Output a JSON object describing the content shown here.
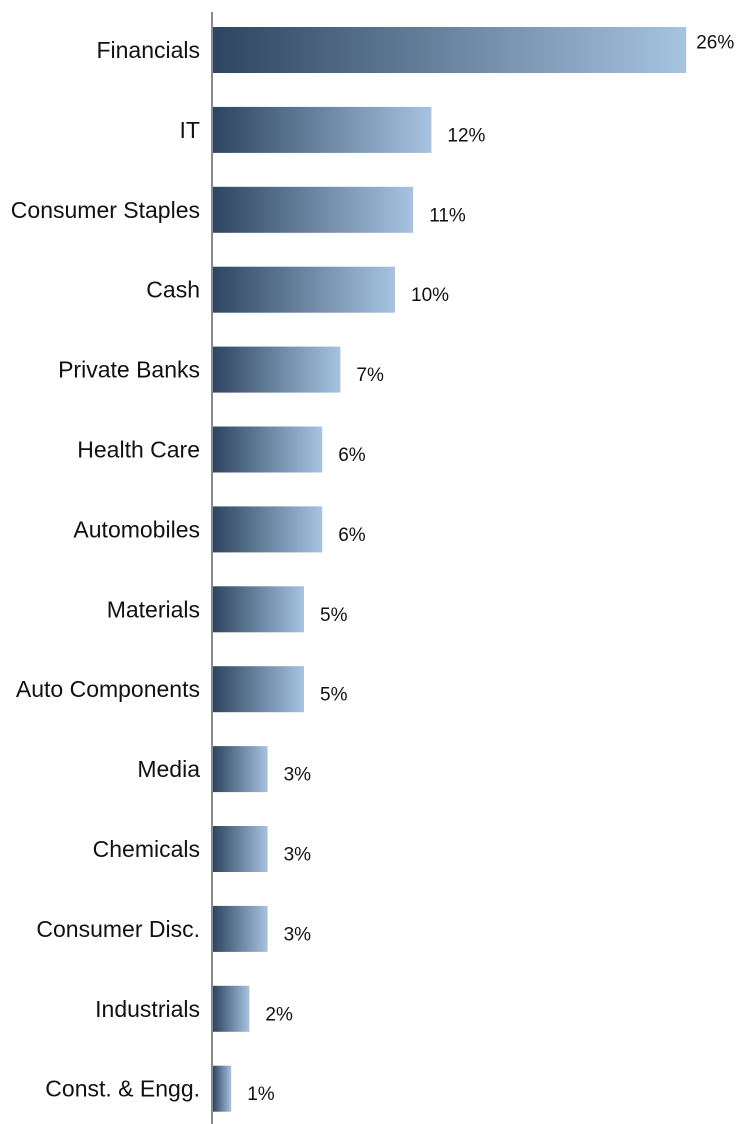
{
  "chart_data": {
    "type": "bar",
    "orientation": "horizontal",
    "categories": [
      "Financials",
      "IT",
      "Consumer Staples",
      "Cash",
      "Private Banks",
      "Health Care",
      "Automobiles",
      "Materials",
      "Auto Components",
      "Media",
      "Chemicals",
      "Consumer Disc.",
      "Industrials",
      "Const. & Engg."
    ],
    "values": [
      26,
      12,
      11,
      10,
      7,
      6,
      6,
      5,
      5,
      3,
      3,
      3,
      2,
      1
    ],
    "value_labels": [
      "26%",
      "12%",
      "11%",
      "10%",
      "7%",
      "6%",
      "6%",
      "5%",
      "5%",
      "3%",
      "3%",
      "3%",
      "2%",
      "1%"
    ],
    "title": "",
    "xlabel": "",
    "ylabel": "",
    "unit": "%",
    "grid": false,
    "legend": "none",
    "colors": {
      "bar_gradient_start": "#2e4560",
      "bar_gradient_end": "#a7c3e2",
      "axis": "#8a8a8a",
      "text": "#111111"
    }
  }
}
